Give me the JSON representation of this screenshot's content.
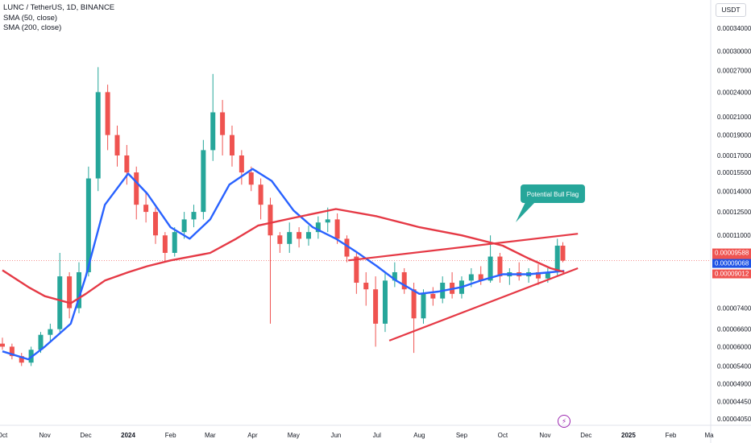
{
  "legend": {
    "symbol_line": "LUNC / TetherUS, 1D, BINANCE",
    "indicators": [
      "SMA (50, close)",
      "SMA (200, close)"
    ]
  },
  "currency": "USDT",
  "annotation": "Potential Bull Flag",
  "price_tags": [
    {
      "value": "0.00009588",
      "sub": "17:24:12",
      "color": "#ef5350",
      "price": 9.588e-05
    },
    {
      "value": "0.00009068",
      "color": "#1e53e5",
      "price": 9.068e-05
    },
    {
      "value": "0.00009012",
      "color": "#ef5350",
      "price": 9.012e-05
    }
  ],
  "y_ticks": [
    "0.00034000",
    "0.00030000",
    "0.00027000",
    "0.00024000",
    "0.00021000",
    "0.00019000",
    "0.00017000",
    "0.00015500",
    "0.00014000",
    "0.00012500",
    "0.00011000",
    "0.00010000",
    "0.00007400",
    "0.00006600",
    "0.00006000",
    "0.00005400",
    "0.00004900",
    "0.00004450",
    "0.00004050"
  ],
  "x_ticks": [
    {
      "label": "Oct",
      "bold": false
    },
    {
      "label": "Nov",
      "bold": false
    },
    {
      "label": "Dec",
      "bold": false
    },
    {
      "label": "2024",
      "bold": true
    },
    {
      "label": "Feb",
      "bold": false
    },
    {
      "label": "Mar",
      "bold": false
    },
    {
      "label": "Apr",
      "bold": false
    },
    {
      "label": "May",
      "bold": false
    },
    {
      "label": "Jun",
      "bold": false
    },
    {
      "label": "Jul",
      "bold": false
    },
    {
      "label": "Aug",
      "bold": false
    },
    {
      "label": "Sep",
      "bold": false
    },
    {
      "label": "Oct",
      "bold": false
    },
    {
      "label": "Nov",
      "bold": false
    },
    {
      "label": "Dec",
      "bold": false
    },
    {
      "label": "2025",
      "bold": true
    },
    {
      "label": "Feb",
      "bold": false
    },
    {
      "label": "Ma",
      "bold": false
    }
  ],
  "colors": {
    "up": "#26a69a",
    "down": "#ef5350",
    "sma50": "#2962ff",
    "sma200": "#e53945",
    "trend": "#e53945",
    "callout": "#26a69a"
  },
  "chart_data": {
    "type": "candlestick",
    "scale": "log",
    "current_price": 9.588e-05,
    "series": [
      {
        "name": "SMA (50, close)",
        "points": [
          [
            "2023-10-01",
            5.85e-05
          ],
          [
            "2023-10-20",
            5.6e-05
          ],
          [
            "2023-11-01",
            6e-05
          ],
          [
            "2023-11-20",
            6.8e-05
          ],
          [
            "2023-12-01",
            8.8e-05
          ],
          [
            "2023-12-15",
            0.00013
          ],
          [
            "2024-01-01",
            0.000154
          ],
          [
            "2024-01-15",
            0.000138
          ],
          [
            "2024-02-01",
            0.000115
          ],
          [
            "2024-02-15",
            0.000108
          ],
          [
            "2024-03-01",
            0.00012
          ],
          [
            "2024-03-15",
            0.000145
          ],
          [
            "2024-04-01",
            0.000158
          ],
          [
            "2024-04-15",
            0.000148
          ],
          [
            "2024-05-01",
            0.000126
          ],
          [
            "2024-05-15",
            0.000115
          ],
          [
            "2024-06-01",
            0.000108
          ],
          [
            "2024-06-15",
            0.000101
          ],
          [
            "2024-07-01",
            9.3e-05
          ],
          [
            "2024-07-15",
            8.6e-05
          ],
          [
            "2024-08-01",
            8e-05
          ],
          [
            "2024-08-15",
            8.1e-05
          ],
          [
            "2024-09-01",
            8.3e-05
          ],
          [
            "2024-09-15",
            8.6e-05
          ],
          [
            "2024-10-01",
            8.9e-05
          ],
          [
            "2024-10-20",
            8.9e-05
          ],
          [
            "2024-11-05",
            9e-05
          ],
          [
            "2024-11-15",
            9.068e-05
          ]
        ]
      },
      {
        "name": "SMA (200, close)",
        "points": [
          [
            "2023-10-01",
            9.1e-05
          ],
          [
            "2023-10-20",
            8.3e-05
          ],
          [
            "2023-11-01",
            7.9e-05
          ],
          [
            "2023-11-20",
            7.6e-05
          ],
          [
            "2023-12-01",
            8e-05
          ],
          [
            "2023-12-15",
            8.6e-05
          ],
          [
            "2024-01-01",
            9e-05
          ],
          [
            "2024-01-15",
            9.3e-05
          ],
          [
            "2024-02-01",
            9.6e-05
          ],
          [
            "2024-03-01",
            0.0001
          ],
          [
            "2024-03-20",
            0.000108
          ],
          [
            "2024-04-05",
            0.000116
          ],
          [
            "2024-05-01",
            0.000121
          ],
          [
            "2024-06-01",
            0.000127
          ],
          [
            "2024-07-01",
            0.000122
          ],
          [
            "2024-08-01",
            0.000115
          ],
          [
            "2024-09-01",
            0.00011
          ],
          [
            "2024-10-01",
            0.000104
          ],
          [
            "2024-10-20",
            9.7e-05
          ],
          [
            "2024-11-05",
            9.2e-05
          ],
          [
            "2024-11-15",
            9.012e-05
          ]
        ]
      },
      {
        "name": "Upper trendline",
        "points": [
          [
            "2024-06-10",
            9.6e-05
          ],
          [
            "2024-11-25",
            0.000111
          ]
        ]
      },
      {
        "name": "Lower trendline",
        "points": [
          [
            "2024-07-10",
            6.2e-05
          ],
          [
            "2024-11-25",
            9.2e-05
          ]
        ]
      }
    ],
    "candles": [
      [
        "2023-10-01",
        6.1e-05,
        6.3e-05,
        5.9e-05,
        6e-05
      ],
      [
        "2023-10-08",
        6e-05,
        6.1e-05,
        5.6e-05,
        5.7e-05
      ],
      [
        "2023-10-15",
        5.7e-05,
        5.8e-05,
        5.4e-05,
        5.5e-05
      ],
      [
        "2023-10-22",
        5.5e-05,
        6e-05,
        5.4e-05,
        5.9e-05
      ],
      [
        "2023-10-29",
        5.9e-05,
        6.5e-05,
        5.8e-05,
        6.4e-05
      ],
      [
        "2023-11-05",
        6.4e-05,
        6.8e-05,
        6.2e-05,
        6.6e-05
      ],
      [
        "2023-11-12",
        6.6e-05,
        0.0001,
        6.5e-05,
        8.8e-05
      ],
      [
        "2023-11-19",
        8.8e-05,
        9e-05,
        7e-05,
        7.4e-05
      ],
      [
        "2023-11-26",
        7.4e-05,
        9.5e-05,
        7.2e-05,
        9e-05
      ],
      [
        "2023-12-03",
        9e-05,
        0.00016,
        8.8e-05,
        0.00015
      ],
      [
        "2023-12-10",
        0.00015,
        0.000275,
        0.00014,
        0.00024
      ],
      [
        "2023-12-17",
        0.00024,
        0.00025,
        0.000175,
        0.00019
      ],
      [
        "2023-12-24",
        0.00019,
        0.0002,
        0.00016,
        0.00017
      ],
      [
        "2023-12-31",
        0.00017,
        0.00018,
        0.000145,
        0.000155
      ],
      [
        "2024-01-07",
        0.000155,
        0.00016,
        0.00012,
        0.00013
      ],
      [
        "2024-01-14",
        0.00013,
        0.00014,
        0.000118,
        0.000125
      ],
      [
        "2024-01-21",
        0.000125,
        0.000128,
        0.000105,
        0.00011
      ],
      [
        "2024-01-28",
        0.00011,
        0.000112,
        9.5e-05,
        0.0001
      ],
      [
        "2024-02-04",
        0.0001,
        0.000115,
        9.8e-05,
        0.000112
      ],
      [
        "2024-02-11",
        0.000112,
        0.000125,
        0.000108,
        0.00012
      ],
      [
        "2024-02-18",
        0.00012,
        0.00013,
        0.000115,
        0.000125
      ],
      [
        "2024-02-25",
        0.000125,
        0.000185,
        0.00012,
        0.000175
      ],
      [
        "2024-03-03",
        0.000175,
        0.000265,
        0.000165,
        0.000215
      ],
      [
        "2024-03-10",
        0.000215,
        0.00023,
        0.00017,
        0.00019
      ],
      [
        "2024-03-17",
        0.00019,
        0.0002,
        0.00016,
        0.00017
      ],
      [
        "2024-03-24",
        0.00017,
        0.000175,
        0.000145,
        0.000155
      ],
      [
        "2024-03-31",
        0.000155,
        0.00016,
        0.00014,
        0.000145
      ],
      [
        "2024-04-07",
        0.000145,
        0.00015,
        0.00012,
        0.00013
      ],
      [
        "2024-04-14",
        0.00013,
        0.000135,
        6.8e-05,
        0.00011
      ],
      [
        "2024-04-21",
        0.00011,
        0.000112,
        0.0001,
        0.000105
      ],
      [
        "2024-04-28",
        0.000105,
        0.000118,
        0.0001,
        0.000112
      ],
      [
        "2024-05-05",
        0.000112,
        0.000115,
        0.000103,
        0.000108
      ],
      [
        "2024-05-12",
        0.000108,
        0.000116,
        0.000104,
        0.000112
      ],
      [
        "2024-05-19",
        0.000112,
        0.000122,
        0.000108,
        0.000118
      ],
      [
        "2024-05-26",
        0.000118,
        0.000128,
        0.000112,
        0.00012
      ],
      [
        "2024-06-02",
        0.00012,
        0.000124,
        0.000105,
        0.000108
      ],
      [
        "2024-06-09",
        0.000108,
        0.00011,
        9.5e-05,
        9.8e-05
      ],
      [
        "2024-06-16",
        9.8e-05,
        0.0001,
        8e-05,
        8.5e-05
      ],
      [
        "2024-06-23",
        8.5e-05,
        9e-05,
        7.5e-05,
        8.2e-05
      ],
      [
        "2024-06-30",
        8.2e-05,
        8.8e-05,
        6e-05,
        6.8e-05
      ],
      [
        "2024-07-07",
        6.8e-05,
        9e-05,
        6.5e-05,
        8.6e-05
      ],
      [
        "2024-07-14",
        8.6e-05,
        9.5e-05,
        8.3e-05,
        9e-05
      ],
      [
        "2024-07-21",
        9e-05,
        9.2e-05,
        8e-05,
        8.2e-05
      ],
      [
        "2024-07-28",
        8.2e-05,
        8.5e-05,
        5.8e-05,
        7e-05
      ],
      [
        "2024-08-04",
        7e-05,
        8.2e-05,
        6.8e-05,
        8e-05
      ],
      [
        "2024-08-11",
        8e-05,
        8.3e-05,
        7.5e-05,
        7.8e-05
      ],
      [
        "2024-08-18",
        7.8e-05,
        8.8e-05,
        7.6e-05,
        8.5e-05
      ],
      [
        "2024-08-25",
        8.5e-05,
        9e-05,
        7.8e-05,
        8e-05
      ],
      [
        "2024-09-01",
        8e-05,
        8.8e-05,
        7.8e-05,
        8.6e-05
      ],
      [
        "2024-09-08",
        8.6e-05,
        9.2e-05,
        8.3e-05,
        8.9e-05
      ],
      [
        "2024-09-15",
        8.9e-05,
        9.3e-05,
        8.4e-05,
        8.6e-05
      ],
      [
        "2024-09-22",
        8.6e-05,
        0.00011,
        8.5e-05,
        9.8e-05
      ],
      [
        "2024-09-29",
        9.8e-05,
        0.0001,
        8.5e-05,
        8.8e-05
      ],
      [
        "2024-10-06",
        8.8e-05,
        9.2e-05,
        8.4e-05,
        9e-05
      ],
      [
        "2024-10-13",
        9e-05,
        9.5e-05,
        8.6e-05,
        8.8e-05
      ],
      [
        "2024-10-20",
        8.8e-05,
        9.2e-05,
        8.5e-05,
        9e-05
      ],
      [
        "2024-10-27",
        9e-05,
        9.4e-05,
        8.4e-05,
        8.7e-05
      ],
      [
        "2024-11-03",
        8.7e-05,
        9.2e-05,
        8.5e-05,
        9e-05
      ],
      [
        "2024-11-10",
        9e-05,
        0.000108,
        8.8e-05,
        0.000104
      ],
      [
        "2024-11-14",
        0.000104,
        0.000106,
        9.5e-05,
        9.588e-05
      ]
    ]
  }
}
